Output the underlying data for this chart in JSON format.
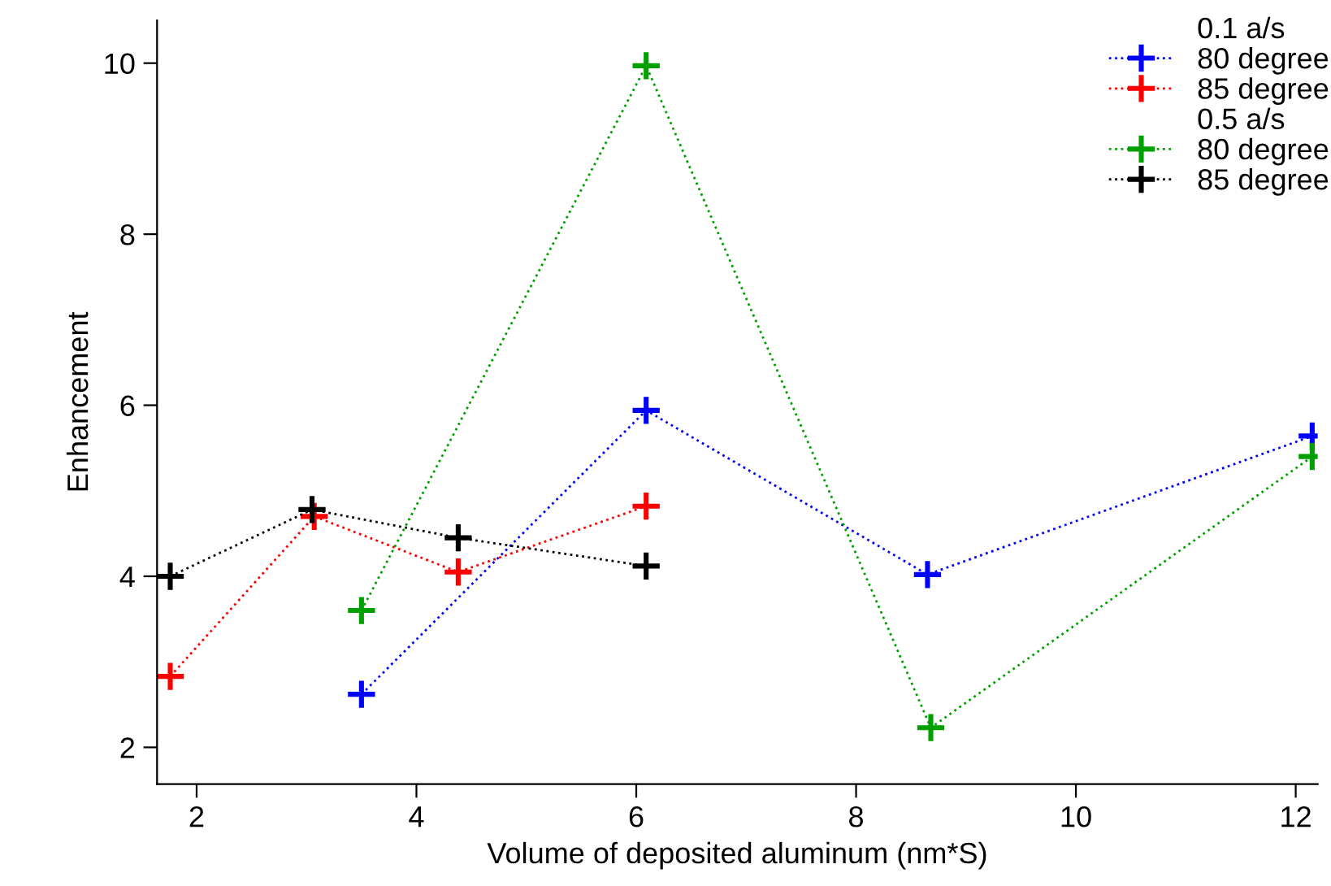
{
  "chart_data": {
    "type": "line",
    "xlabel": "Volume of deposited aluminum (nm*S)",
    "ylabel": "Enhancement",
    "annotations": [
      "0.1 a/s",
      "0.5 a/s"
    ],
    "series": [
      {
        "name": "80 degree",
        "color": "#0000ff",
        "x": [
          3.5,
          6.09,
          8.65,
          12.15
        ],
        "values": [
          2.62,
          5.94,
          4.02,
          5.64
        ]
      },
      {
        "name": "85 degree",
        "color": "#ff0000",
        "x": [
          1.76,
          3.07,
          4.38,
          6.09
        ],
        "values": [
          2.83,
          4.7,
          4.05,
          4.82
        ]
      },
      {
        "name": "80 degree",
        "color": "#00a000",
        "x": [
          3.5,
          6.09,
          8.68,
          12.15
        ],
        "values": [
          3.6,
          9.97,
          2.23,
          5.4
        ]
      },
      {
        "name": "85 degree",
        "color": "#000000",
        "x": [
          1.76,
          3.05,
          4.38,
          6.09
        ],
        "values": [
          4.0,
          4.78,
          4.45,
          4.12
        ]
      }
    ],
    "xlim": [
      1.64,
      12.2
    ],
    "ylim": [
      1.57,
      10.5
    ],
    "xticks": [
      2,
      4,
      6,
      8,
      10,
      12
    ],
    "yticks": [
      2,
      4,
      6,
      8,
      10
    ],
    "grid": false,
    "legend": "top right",
    "marker": "cross",
    "line_style": "dotted"
  }
}
